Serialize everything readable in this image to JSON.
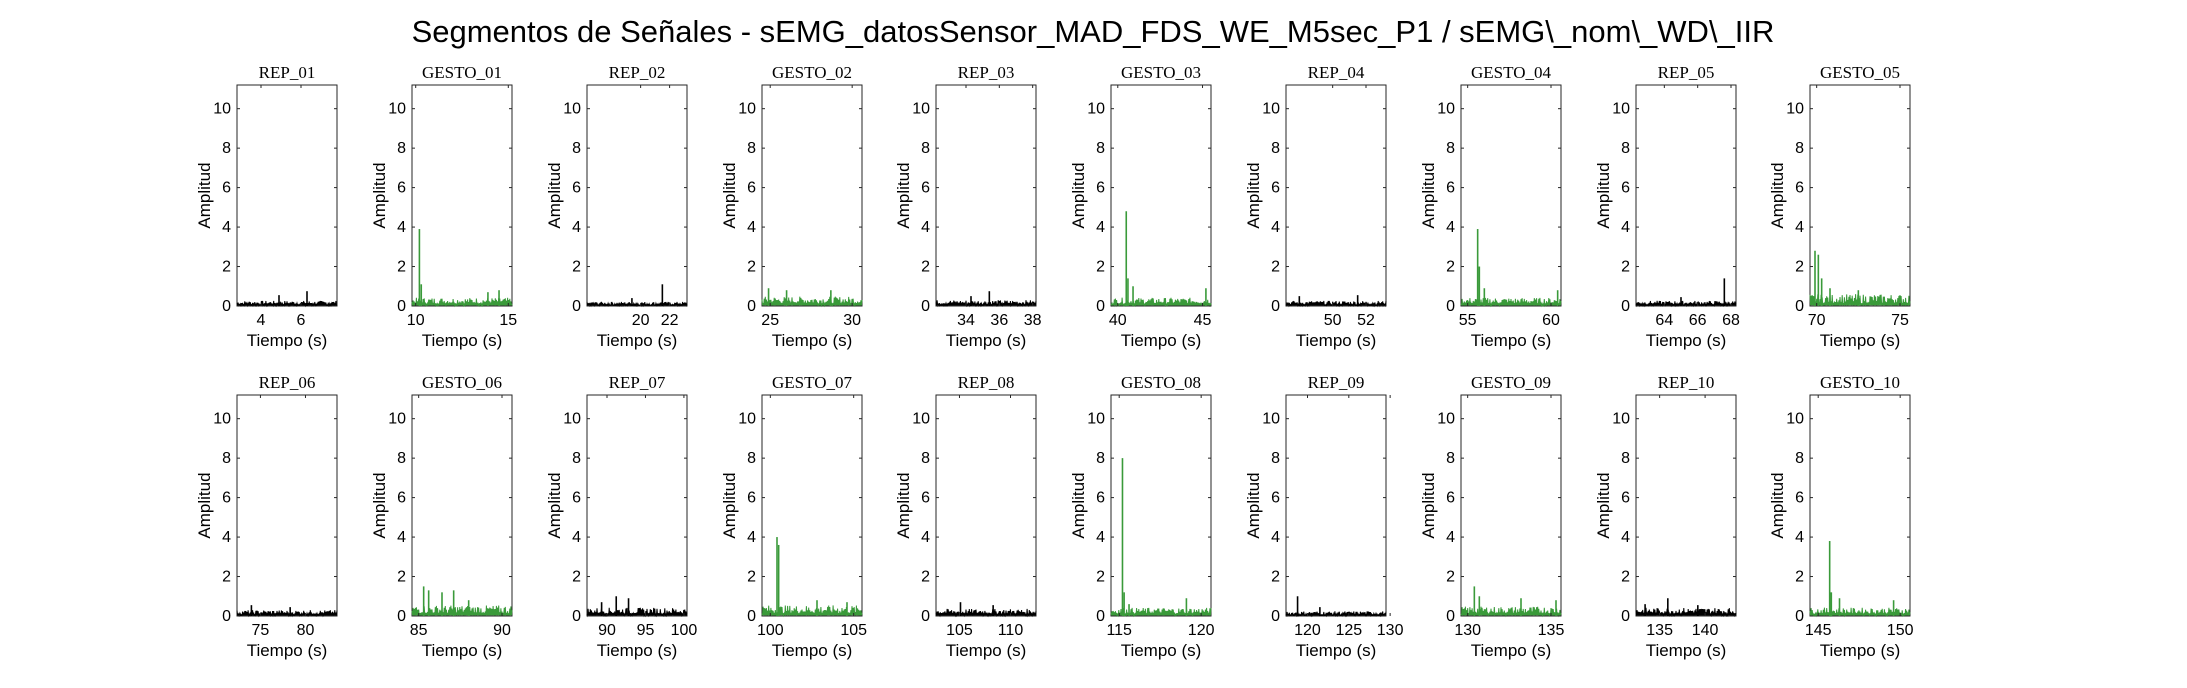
{
  "figure": {
    "title": "Segmentos de Señales - sEMG_datosSensor_MAD_FDS_WE_M5sec_P1 / sEMG\\_nom\\_WD\\_IIR",
    "rep_color": "#000000",
    "gesto_color": "#3a9a3a",
    "background": "#ffffff"
  },
  "chart_data": [
    {
      "type": "line",
      "title": "REP_01",
      "xlabel": "Tiempo (s)",
      "ylabel": "Amplitud",
      "xlim": [
        2.8,
        7.8
      ],
      "ylim": [
        0,
        11.2
      ],
      "xticks": [
        4,
        6
      ],
      "yticks": [
        0,
        2,
        4,
        6,
        8,
        10
      ],
      "color": "#000000",
      "baseline": 0.22,
      "spikes": [
        [
          6.3,
          0.75
        ],
        [
          4.9,
          0.55
        ]
      ]
    },
    {
      "type": "line",
      "title": "GESTO_01",
      "xlabel": "Tiempo (s)",
      "ylabel": "Amplitud",
      "xlim": [
        9.8,
        15.2
      ],
      "ylim": [
        0,
        11.2
      ],
      "xticks": [
        10,
        15
      ],
      "yticks": [
        0,
        2,
        4,
        6,
        8,
        10
      ],
      "color": "#3a9a3a",
      "baseline": 0.35,
      "spikes": [
        [
          10.2,
          3.9
        ],
        [
          10.3,
          1.1
        ],
        [
          14.5,
          0.8
        ],
        [
          13.9,
          0.7
        ]
      ]
    },
    {
      "type": "line",
      "title": "REP_02",
      "xlabel": "Tiempo (s)",
      "ylabel": "Amplitud",
      "xlim": [
        16.3,
        23.2
      ],
      "ylim": [
        0,
        11.2
      ],
      "xticks": [
        20,
        22
      ],
      "yticks": [
        0,
        2,
        4,
        6,
        8,
        10
      ],
      "color": "#000000",
      "baseline": 0.18,
      "spikes": [
        [
          21.5,
          1.1
        ],
        [
          19.4,
          0.4
        ]
      ]
    },
    {
      "type": "line",
      "title": "GESTO_02",
      "xlabel": "Tiempo (s)",
      "ylabel": "Amplitud",
      "xlim": [
        24.5,
        30.6
      ],
      "ylim": [
        0,
        11.2
      ],
      "xticks": [
        25,
        30
      ],
      "yticks": [
        0,
        2,
        4,
        6,
        8,
        10
      ],
      "color": "#3a9a3a",
      "baseline": 0.4,
      "spikes": [
        [
          24.9,
          0.9
        ],
        [
          26.0,
          0.8
        ],
        [
          28.7,
          0.8
        ]
      ]
    },
    {
      "type": "line",
      "title": "REP_03",
      "xlabel": "Tiempo (s)",
      "ylabel": "Amplitud",
      "xlim": [
        32.2,
        38.2
      ],
      "ylim": [
        0,
        11.2
      ],
      "xticks": [
        34,
        36,
        38
      ],
      "yticks": [
        0,
        2,
        4,
        6,
        8,
        10
      ],
      "color": "#000000",
      "baseline": 0.25,
      "spikes": [
        [
          35.4,
          0.75
        ],
        [
          34.3,
          0.5
        ]
      ]
    },
    {
      "type": "line",
      "title": "GESTO_03",
      "xlabel": "Tiempo (s)",
      "ylabel": "Amplitud",
      "xlim": [
        39.6,
        45.5
      ],
      "ylim": [
        0,
        11.2
      ],
      "xticks": [
        40,
        45
      ],
      "yticks": [
        0,
        2,
        4,
        6,
        8,
        10
      ],
      "color": "#3a9a3a",
      "baseline": 0.35,
      "spikes": [
        [
          40.5,
          4.8
        ],
        [
          40.6,
          1.4
        ],
        [
          40.9,
          1.0
        ],
        [
          45.2,
          0.9
        ]
      ]
    },
    {
      "type": "line",
      "title": "REP_04",
      "xlabel": "Tiempo (s)",
      "ylabel": "Amplitud",
      "xlim": [
        47.2,
        53.2
      ],
      "ylim": [
        0,
        11.2
      ],
      "xticks": [
        50,
        52
      ],
      "yticks": [
        0,
        2,
        4,
        6,
        8,
        10
      ],
      "color": "#000000",
      "baseline": 0.22,
      "spikes": [
        [
          48.0,
          0.5
        ],
        [
          51.5,
          0.55
        ]
      ]
    },
    {
      "type": "line",
      "title": "GESTO_04",
      "xlabel": "Tiempo (s)",
      "ylabel": "Amplitud",
      "xlim": [
        54.6,
        60.6
      ],
      "ylim": [
        0,
        11.2
      ],
      "xticks": [
        55,
        60
      ],
      "yticks": [
        0,
        2,
        4,
        6,
        8,
        10
      ],
      "color": "#3a9a3a",
      "baseline": 0.35,
      "spikes": [
        [
          55.6,
          3.9
        ],
        [
          55.7,
          2.0
        ],
        [
          56.0,
          0.9
        ],
        [
          60.4,
          0.8
        ]
      ]
    },
    {
      "type": "line",
      "title": "REP_05",
      "xlabel": "Tiempo (s)",
      "ylabel": "Amplitud",
      "xlim": [
        62.3,
        68.3
      ],
      "ylim": [
        0,
        11.2
      ],
      "xticks": [
        64,
        66,
        68
      ],
      "yticks": [
        0,
        2,
        4,
        6,
        8,
        10
      ],
      "color": "#000000",
      "baseline": 0.22,
      "spikes": [
        [
          67.6,
          1.4
        ],
        [
          65.0,
          0.45
        ]
      ]
    },
    {
      "type": "line",
      "title": "GESTO_05",
      "xlabel": "Tiempo (s)",
      "ylabel": "Amplitud",
      "xlim": [
        69.6,
        75.6
      ],
      "ylim": [
        0,
        11.2
      ],
      "xticks": [
        70,
        75
      ],
      "yticks": [
        0,
        2,
        4,
        6,
        8,
        10
      ],
      "color": "#3a9a3a",
      "baseline": 0.5,
      "spikes": [
        [
          69.9,
          2.8
        ],
        [
          70.1,
          2.6
        ],
        [
          70.3,
          1.4
        ],
        [
          70.8,
          0.9
        ],
        [
          72.5,
          0.8
        ]
      ]
    },
    {
      "type": "line",
      "title": "REP_06",
      "xlabel": "Tiempo (s)",
      "ylabel": "Amplitud",
      "xlim": [
        72.4,
        83.5
      ],
      "ylim": [
        0,
        11.2
      ],
      "xticks": [
        75,
        80
      ],
      "yticks": [
        0,
        2,
        4,
        6,
        8,
        10
      ],
      "color": "#000000",
      "baseline": 0.25,
      "spikes": [
        [
          74.0,
          0.55
        ],
        [
          78.3,
          0.45
        ]
      ]
    },
    {
      "type": "line",
      "title": "GESTO_06",
      "xlabel": "Tiempo (s)",
      "ylabel": "Amplitud",
      "xlim": [
        84.6,
        90.6
      ],
      "ylim": [
        0,
        11.2
      ],
      "xticks": [
        85,
        90
      ],
      "yticks": [
        0,
        2,
        4,
        6,
        8,
        10
      ],
      "color": "#3a9a3a",
      "baseline": 0.45,
      "spikes": [
        [
          85.3,
          1.5
        ],
        [
          85.6,
          1.3
        ],
        [
          86.4,
          1.2
        ],
        [
          87.1,
          1.3
        ],
        [
          88.0,
          0.8
        ]
      ]
    },
    {
      "type": "line",
      "title": "REP_07",
      "xlabel": "Tiempo (s)",
      "ylabel": "Amplitud",
      "xlim": [
        87.4,
        100.4
      ],
      "ylim": [
        0,
        11.2
      ],
      "xticks": [
        90,
        95,
        100
      ],
      "yticks": [
        0,
        2,
        4,
        6,
        8,
        10
      ],
      "color": "#000000",
      "baseline": 0.35,
      "spikes": [
        [
          91.2,
          1.0
        ],
        [
          92.8,
          0.9
        ],
        [
          89.3,
          0.7
        ]
      ]
    },
    {
      "type": "line",
      "title": "GESTO_07",
      "xlabel": "Tiempo (s)",
      "ylabel": "Amplitud",
      "xlim": [
        99.5,
        105.5
      ],
      "ylim": [
        0,
        11.2
      ],
      "xticks": [
        100,
        105
      ],
      "yticks": [
        0,
        2,
        4,
        6,
        8,
        10
      ],
      "color": "#3a9a3a",
      "baseline": 0.45,
      "spikes": [
        [
          100.4,
          4.0
        ],
        [
          100.5,
          3.6
        ],
        [
          102.8,
          0.8
        ],
        [
          104.6,
          0.7
        ]
      ]
    },
    {
      "type": "line",
      "title": "REP_08",
      "xlabel": "Tiempo (s)",
      "ylabel": "Amplitud",
      "xlim": [
        102.7,
        112.5
      ],
      "ylim": [
        0,
        11.2
      ],
      "xticks": [
        105,
        110
      ],
      "yticks": [
        0,
        2,
        4,
        6,
        8,
        10
      ],
      "color": "#000000",
      "baseline": 0.3,
      "spikes": [
        [
          105.1,
          0.7
        ],
        [
          108.3,
          0.55
        ]
      ]
    },
    {
      "type": "line",
      "title": "GESTO_08",
      "xlabel": "Tiempo (s)",
      "ylabel": "Amplitud",
      "xlim": [
        114.5,
        120.6
      ],
      "ylim": [
        0,
        11.2
      ],
      "xticks": [
        115,
        120
      ],
      "yticks": [
        0,
        2,
        4,
        6,
        8,
        10
      ],
      "color": "#3a9a3a",
      "baseline": 0.35,
      "spikes": [
        [
          115.2,
          8.0
        ],
        [
          115.3,
          1.2
        ],
        [
          115.6,
          0.6
        ],
        [
          119.1,
          0.9
        ]
      ]
    },
    {
      "type": "line",
      "title": "REP_09",
      "xlabel": "Tiempo (s)",
      "ylabel": "Amplitud",
      "xlim": [
        117.4,
        129.5
      ],
      "ylim": [
        0,
        11.2
      ],
      "xticks": [
        120,
        125,
        130
      ],
      "yticks": [
        0,
        2,
        4,
        6,
        8,
        10
      ],
      "color": "#000000",
      "baseline": 0.2,
      "spikes": [
        [
          118.8,
          1.0
        ],
        [
          121.5,
          0.45
        ]
      ]
    },
    {
      "type": "line",
      "title": "GESTO_09",
      "xlabel": "Tiempo (s)",
      "ylabel": "Amplitud",
      "xlim": [
        129.6,
        135.6
      ],
      "ylim": [
        0,
        11.2
      ],
      "xticks": [
        130,
        135
      ],
      "yticks": [
        0,
        2,
        4,
        6,
        8,
        10
      ],
      "color": "#3a9a3a",
      "baseline": 0.4,
      "spikes": [
        [
          130.4,
          1.5
        ],
        [
          130.7,
          1.0
        ],
        [
          133.2,
          0.9
        ],
        [
          135.3,
          0.8
        ]
      ]
    },
    {
      "type": "line",
      "title": "REP_10",
      "xlabel": "Tiempo (s)",
      "ylabel": "Amplitud",
      "xlim": [
        132.4,
        143.4
      ],
      "ylim": [
        0,
        11.2
      ],
      "xticks": [
        135,
        140
      ],
      "yticks": [
        0,
        2,
        4,
        6,
        8,
        10
      ],
      "color": "#000000",
      "baseline": 0.35,
      "spikes": [
        [
          135.9,
          0.9
        ],
        [
          133.4,
          0.6
        ],
        [
          139.2,
          0.55
        ]
      ]
    },
    {
      "type": "line",
      "title": "GESTO_10",
      "xlabel": "Tiempo (s)",
      "ylabel": "Amplitud",
      "xlim": [
        144.5,
        150.6
      ],
      "ylim": [
        0,
        11.2
      ],
      "xticks": [
        145,
        150
      ],
      "yticks": [
        0,
        2,
        4,
        6,
        8,
        10
      ],
      "color": "#3a9a3a",
      "baseline": 0.35,
      "spikes": [
        [
          145.7,
          3.8
        ],
        [
          145.8,
          1.2
        ],
        [
          146.3,
          0.9
        ],
        [
          149.6,
          0.8
        ]
      ]
    }
  ]
}
